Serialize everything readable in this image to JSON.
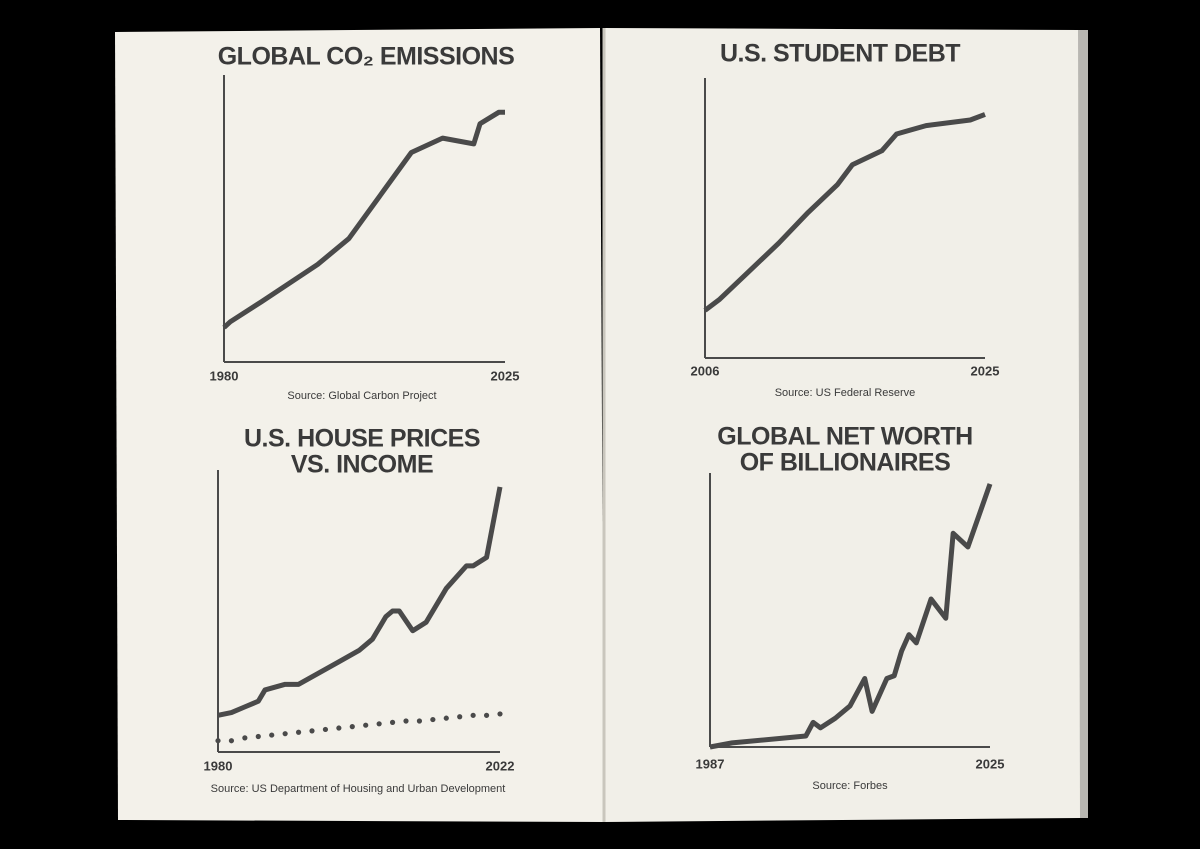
{
  "chart_data": [
    {
      "type": "line",
      "title": "GLOBAL CO₂ EMISSIONS",
      "source": "Source: Global Carbon Project",
      "xlim": [
        1980,
        2025
      ],
      "xticks": [
        1980,
        2025
      ],
      "ylim": [
        0,
        100
      ],
      "series": [
        {
          "color": "#4a4a4a",
          "style": "solid",
          "x": [
            1980,
            1981,
            1986,
            1995,
            2000,
            2005,
            2010,
            2015,
            2020,
            2021,
            2024,
            2025
          ],
          "values": [
            12,
            14,
            21,
            34,
            43,
            58,
            73,
            78,
            76,
            83,
            87,
            87
          ]
        }
      ]
    },
    {
      "type": "line",
      "title": "U.S. STUDENT DEBT",
      "source": "Source: US Federal Reserve",
      "xlim": [
        2006,
        2025
      ],
      "xticks": [
        2006,
        2025
      ],
      "ylim": [
        0,
        100
      ],
      "series": [
        {
          "color": "#4a4a4a",
          "style": "solid",
          "x": [
            2006,
            2007,
            2009,
            2011,
            2013,
            2015,
            2016,
            2018,
            2019,
            2021,
            2024,
            2025
          ],
          "values": [
            17,
            21,
            31,
            41,
            52,
            62,
            69,
            74,
            80,
            83,
            85,
            87
          ]
        }
      ]
    },
    {
      "type": "line",
      "title": [
        "U.S. HOUSE PRICES",
        "VS. INCOME"
      ],
      "source": "Source: US Department of Housing and Urban Development",
      "xlim": [
        1980,
        2022
      ],
      "xticks": [
        1980,
        2022
      ],
      "ylim": [
        0,
        100
      ],
      "series": [
        {
          "color": "#4a4a4a",
          "style": "solid",
          "x": [
            1980,
            1982,
            1984,
            1986,
            1987,
            1990,
            1992,
            1995,
            1998,
            2001,
            2003,
            2005,
            2006,
            2007,
            2009,
            2011,
            2014,
            2017,
            2018,
            2020,
            2022
          ],
          "values": [
            13,
            14,
            16,
            18,
            22,
            24,
            24,
            28,
            32,
            36,
            40,
            48,
            50,
            50,
            43,
            46,
            58,
            66,
            66,
            69,
            94
          ]
        },
        {
          "color": "#4a4a4a",
          "style": "dotted",
          "x": [
            1980,
            1982,
            1984,
            1986,
            1988,
            1990,
            1992,
            1994,
            1996,
            1998,
            2000,
            2002,
            2004,
            2006,
            2008,
            2010,
            2012,
            2014,
            2016,
            2018,
            2020,
            2022
          ],
          "values": [
            4,
            4,
            5,
            5.5,
            6,
            6.5,
            7,
            7.5,
            8,
            8.5,
            9,
            9.5,
            10,
            10.5,
            11,
            11,
            11.5,
            12,
            12.5,
            13,
            13,
            13.5
          ]
        }
      ]
    },
    {
      "type": "line",
      "title": [
        "GLOBAL NET WORTH",
        "OF BILLIONAIRES"
      ],
      "source": "Source: Forbes",
      "xlim": [
        1987,
        2025
      ],
      "xticks": [
        1987,
        2025
      ],
      "ylim": [
        0,
        100
      ],
      "series": [
        {
          "color": "#4a4a4a",
          "style": "solid",
          "x": [
            1987,
            1990,
            2000,
            2001,
            2002,
            2004,
            2006,
            2008,
            2009,
            2011,
            2012,
            2013,
            2014,
            2015,
            2017,
            2019,
            2020,
            2022,
            2025
          ],
          "values": [
            0,
            1.5,
            4,
            9,
            7,
            10.5,
            15,
            25,
            13,
            25,
            26,
            35,
            41,
            38,
            54,
            47,
            78,
            73,
            96
          ]
        }
      ]
    }
  ]
}
